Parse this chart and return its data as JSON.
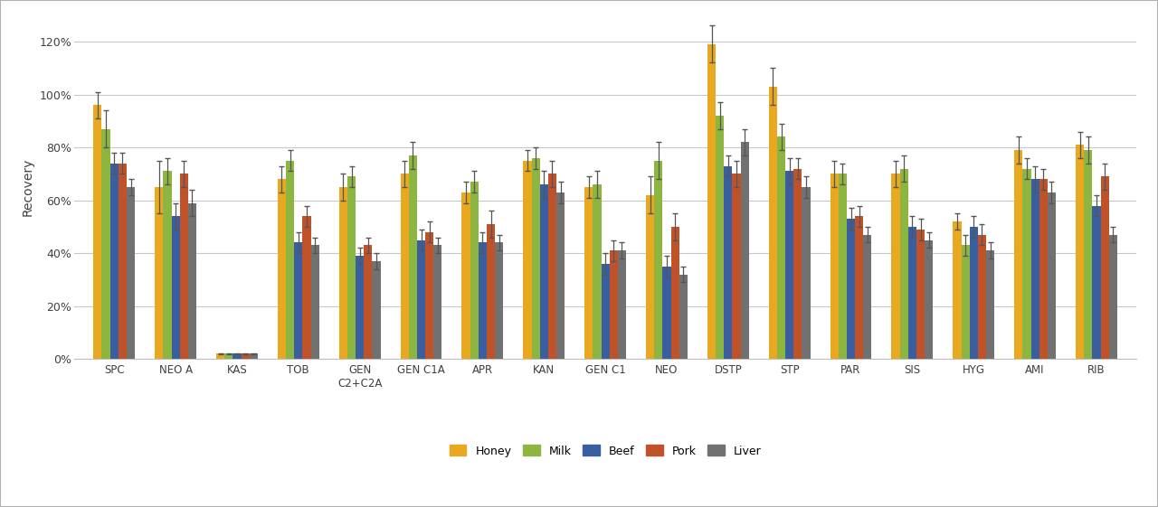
{
  "categories": [
    "SPC",
    "NEO A",
    "KAS",
    "TOB",
    "GEN",
    "GEN C1A",
    "APR",
    "KAN",
    "GEN C1",
    "NEO",
    "DSTP",
    "STP",
    "PAR",
    "SIS",
    "HYG",
    "AMI",
    "RIB"
  ],
  "cat5_extra": "C2+C2A",
  "series": {
    "Honey": [
      96,
      65,
      2,
      68,
      65,
      70,
      63,
      75,
      65,
      62,
      119,
      103,
      70,
      70,
      52,
      79,
      81
    ],
    "Milk": [
      87,
      71,
      2,
      75,
      69,
      77,
      67,
      76,
      66,
      75,
      92,
      84,
      70,
      72,
      43,
      72,
      79
    ],
    "Beef": [
      74,
      54,
      2,
      44,
      39,
      45,
      44,
      66,
      36,
      35,
      73,
      71,
      53,
      50,
      50,
      68,
      58
    ],
    "Pork": [
      74,
      70,
      2,
      54,
      43,
      48,
      51,
      70,
      41,
      50,
      70,
      72,
      54,
      49,
      47,
      68,
      69
    ],
    "Liver": [
      65,
      59,
      2,
      43,
      37,
      43,
      44,
      63,
      41,
      32,
      82,
      65,
      47,
      45,
      41,
      63,
      47
    ]
  },
  "errors": {
    "Honey": [
      5,
      10,
      0.3,
      5,
      5,
      5,
      4,
      4,
      4,
      7,
      7,
      7,
      5,
      5,
      3,
      5,
      5
    ],
    "Milk": [
      7,
      5,
      0.3,
      4,
      4,
      5,
      4,
      4,
      5,
      7,
      5,
      5,
      4,
      5,
      4,
      4,
      5
    ],
    "Beef": [
      4,
      5,
      0.3,
      4,
      3,
      4,
      4,
      5,
      4,
      4,
      4,
      5,
      4,
      4,
      4,
      5,
      4
    ],
    "Pork": [
      4,
      5,
      0.3,
      4,
      3,
      4,
      5,
      5,
      4,
      5,
      5,
      4,
      4,
      4,
      4,
      4,
      5
    ],
    "Liver": [
      3,
      5,
      0.3,
      3,
      3,
      3,
      3,
      4,
      3,
      3,
      5,
      4,
      3,
      3,
      3,
      4,
      3
    ]
  },
  "colors": {
    "Honey": "#E8A820",
    "Milk": "#8DB641",
    "Beef": "#3A5FA0",
    "Pork": "#C0522A",
    "Liver": "#717171"
  },
  "ylabel": "Recovery",
  "ylim_min": 0,
  "ylim_max": 130,
  "yticks": [
    0,
    20,
    40,
    60,
    80,
    100,
    120
  ],
  "ytick_labels": [
    "0%",
    "20%",
    "40%",
    "60%",
    "80%",
    "100%",
    "120%"
  ],
  "background_color": "#FFFFFF",
  "plot_bg_color": "#FFFFFF",
  "grid_color": "#C8C8C8",
  "bar_width": 0.135,
  "figsize": [
    12.8,
    5.61
  ],
  "dpi": 100
}
